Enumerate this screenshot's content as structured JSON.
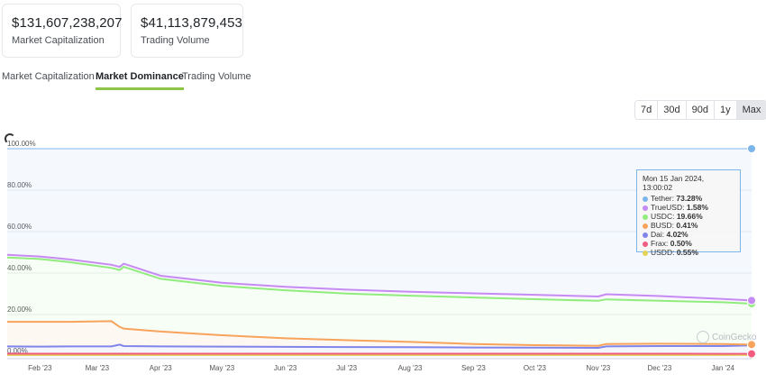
{
  "stats": {
    "market_cap": {
      "value": "$131,607,238,207",
      "label": "Market Capitalization"
    },
    "trading_volume": {
      "value": "$41,113,879,453",
      "label": "Trading Volume"
    }
  },
  "tabs": [
    "Market Capitalization",
    "Market Dominance",
    "Trading Volume"
  ],
  "active_tab": "Market Dominance",
  "ranges": [
    "7d",
    "30d",
    "90d",
    "1y",
    "Max"
  ],
  "active_range": "Max",
  "tooltip": {
    "title": "Mon 15 Jan 2024, 13:00:02",
    "rows": [
      {
        "name": "Tether:",
        "value": "73.28%",
        "color": "#7cb5ec"
      },
      {
        "name": "TrueUSD:",
        "value": "1.58%",
        "color": "#c68bf2"
      },
      {
        "name": "USDC:",
        "value": "19.66%",
        "color": "#90ed7d"
      },
      {
        "name": "BUSD:",
        "value": "0.41%",
        "color": "#f7a35c"
      },
      {
        "name": "Dai:",
        "value": "4.02%",
        "color": "#8085e9"
      },
      {
        "name": "Frax:",
        "value": "0.50%",
        "color": "#f15c80"
      },
      {
        "name": "USDD:",
        "value": "0.55%",
        "color": "#e4d354"
      }
    ]
  },
  "watermark": "CoinGecko",
  "chart_data": {
    "type": "area",
    "stacking": "percent",
    "x_ticks": [
      "Feb '23",
      "Mar '23",
      "Apr '23",
      "May '23",
      "Jun '23",
      "Jul '23",
      "Aug '23",
      "Sep '23",
      "Oct '23",
      "Nov '23",
      "Dec '23",
      "Jan '24"
    ],
    "y_ticks": [
      "0.00%",
      "20.00%",
      "40.00%",
      "60.00%",
      "80.00%",
      "100.00%"
    ],
    "ylim": [
      0,
      100
    ],
    "xlim": [
      "2023-01-16",
      "2024-01-15"
    ],
    "grid": true,
    "note_values": "cumulative stacked boundary (%) at each date, bottom-up",
    "dates": [
      "2023-01-16",
      "2023-02-01",
      "2023-02-15",
      "2023-03-08",
      "2023-03-12",
      "2023-03-14",
      "2023-04-01",
      "2023-05-01",
      "2023-06-01",
      "2023-07-01",
      "2023-08-01",
      "2023-09-01",
      "2023-10-01",
      "2023-11-01",
      "2023-11-05",
      "2023-12-01",
      "2024-01-01",
      "2024-01-15"
    ],
    "series": [
      {
        "name": "USDD",
        "color": "#e4d354",
        "top": [
          0.5,
          0.5,
          0.5,
          0.5,
          0.5,
          0.5,
          0.5,
          0.5,
          0.5,
          0.5,
          0.5,
          0.5,
          0.5,
          0.5,
          0.5,
          0.5,
          0.5,
          0.55
        ]
      },
      {
        "name": "Frax",
        "color": "#f15c80",
        "top": [
          1.1,
          1.1,
          1.1,
          1.1,
          1.1,
          1.1,
          1.1,
          1.1,
          1.1,
          1.1,
          1.1,
          1.1,
          1.1,
          1.1,
          1.1,
          1.1,
          1.05,
          1.05
        ]
      },
      {
        "name": "Dai",
        "color": "#8085e9",
        "top": [
          4.6,
          4.5,
          4.6,
          4.6,
          5.5,
          4.8,
          4.6,
          4.5,
          4.4,
          4.3,
          4.2,
          4.1,
          4.0,
          3.9,
          4.6,
          4.8,
          4.8,
          5.1
        ]
      },
      {
        "name": "BUSD",
        "color": "#f7a35c",
        "top": [
          16.5,
          16.5,
          16.5,
          16.8,
          14.0,
          13.2,
          11.8,
          10.0,
          8.5,
          7.6,
          6.8,
          5.8,
          5.2,
          4.9,
          5.8,
          5.9,
          5.8,
          5.5
        ]
      },
      {
        "name": "USDC",
        "color": "#90ed7d",
        "top": [
          47.5,
          46.8,
          45.3,
          42.5,
          41.5,
          43.0,
          37.2,
          33.8,
          31.7,
          30.1,
          29.1,
          28.2,
          27.4,
          26.6,
          27.3,
          26.6,
          25.9,
          25.2
        ]
      },
      {
        "name": "TrueUSD",
        "color": "#c68bf2",
        "top": [
          48.8,
          48.0,
          46.6,
          44.0,
          43.0,
          44.5,
          38.7,
          35.3,
          33.4,
          32.0,
          31.0,
          30.2,
          29.5,
          28.7,
          29.8,
          28.9,
          27.5,
          26.8
        ]
      },
      {
        "name": "Tether",
        "color": "#7cb5ec",
        "top": [
          100,
          100,
          100,
          100,
          100,
          100,
          100,
          100,
          100,
          100,
          100,
          100,
          100,
          100,
          100,
          100,
          100,
          100
        ]
      }
    ]
  }
}
